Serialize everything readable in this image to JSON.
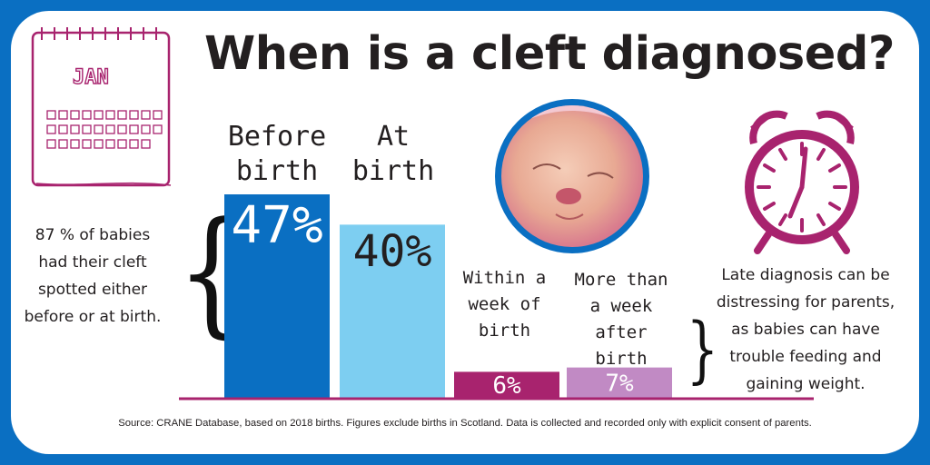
{
  "title": "When is a cleft diagnosed?",
  "calendar": {
    "month": "JAN"
  },
  "left_note": "87 %  of babies had their cleft spotted either before or at birth.",
  "right_note": "Late diagnosis can be distressing for parents, as babies can have trouble feeding and gaining weight.",
  "source": "Source: CRANE Database, based on 2018 births. Figures exclude births in Scotland. Data is collected and recorded only with explicit consent of parents.",
  "colors": {
    "before_birth": "#0a6fc2",
    "at_birth": "#7dcef1",
    "within_week": "#a8236e",
    "after_week": "#c18ac4",
    "baseline": "#a8236e",
    "border": "#0a6fc2"
  },
  "chart_data": {
    "type": "bar",
    "categories": [
      "Before birth",
      "At birth",
      "Within a week of birth",
      "More than a week after birth"
    ],
    "values": [
      47,
      40,
      6,
      7
    ],
    "value_labels": [
      "47%",
      "40%",
      "6%",
      "7%"
    ],
    "ylim": [
      0,
      47
    ],
    "grid": false,
    "legend": "none"
  }
}
